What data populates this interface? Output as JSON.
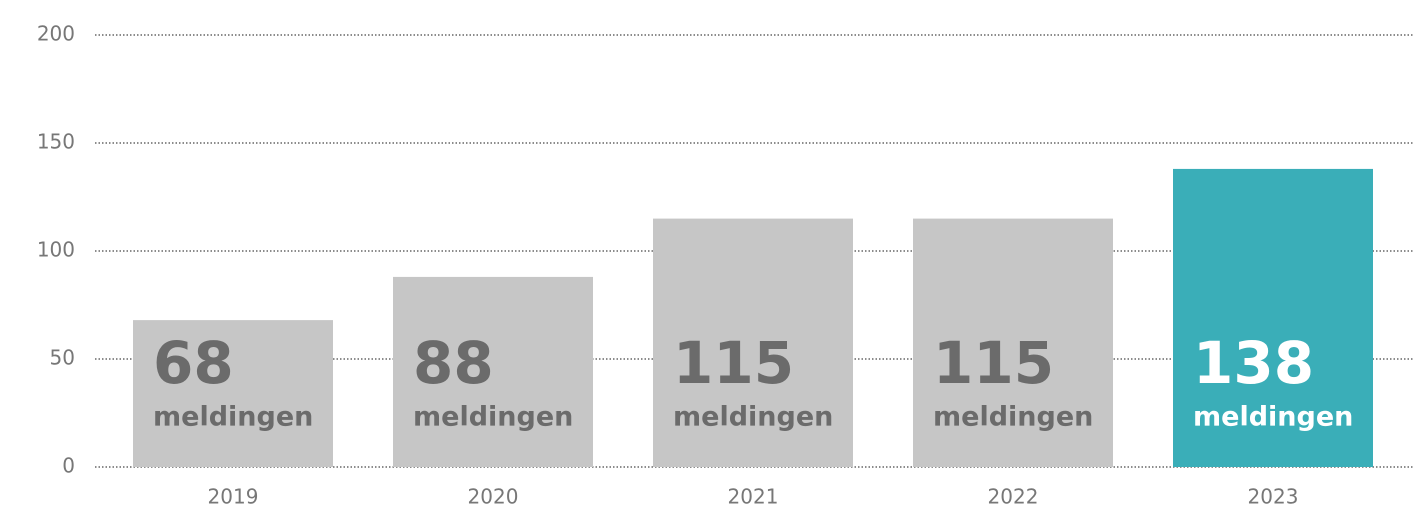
{
  "chart_data": {
    "type": "bar",
    "categories": [
      "2019",
      "2020",
      "2021",
      "2022",
      "2023"
    ],
    "values": [
      68,
      88,
      115,
      115,
      138
    ],
    "unit": "meldingen",
    "colors": [
      "#c6c6c6",
      "#c6c6c6",
      "#c6c6c6",
      "#c6c6c6",
      "#3aaeb8"
    ],
    "label_colors": [
      "#6b6b6b",
      "#6b6b6b",
      "#6b6b6b",
      "#6b6b6b",
      "#ffffff"
    ],
    "ylim": [
      0,
      200
    ],
    "yticks": [
      0,
      50,
      100,
      150,
      200
    ],
    "grid": true
  }
}
